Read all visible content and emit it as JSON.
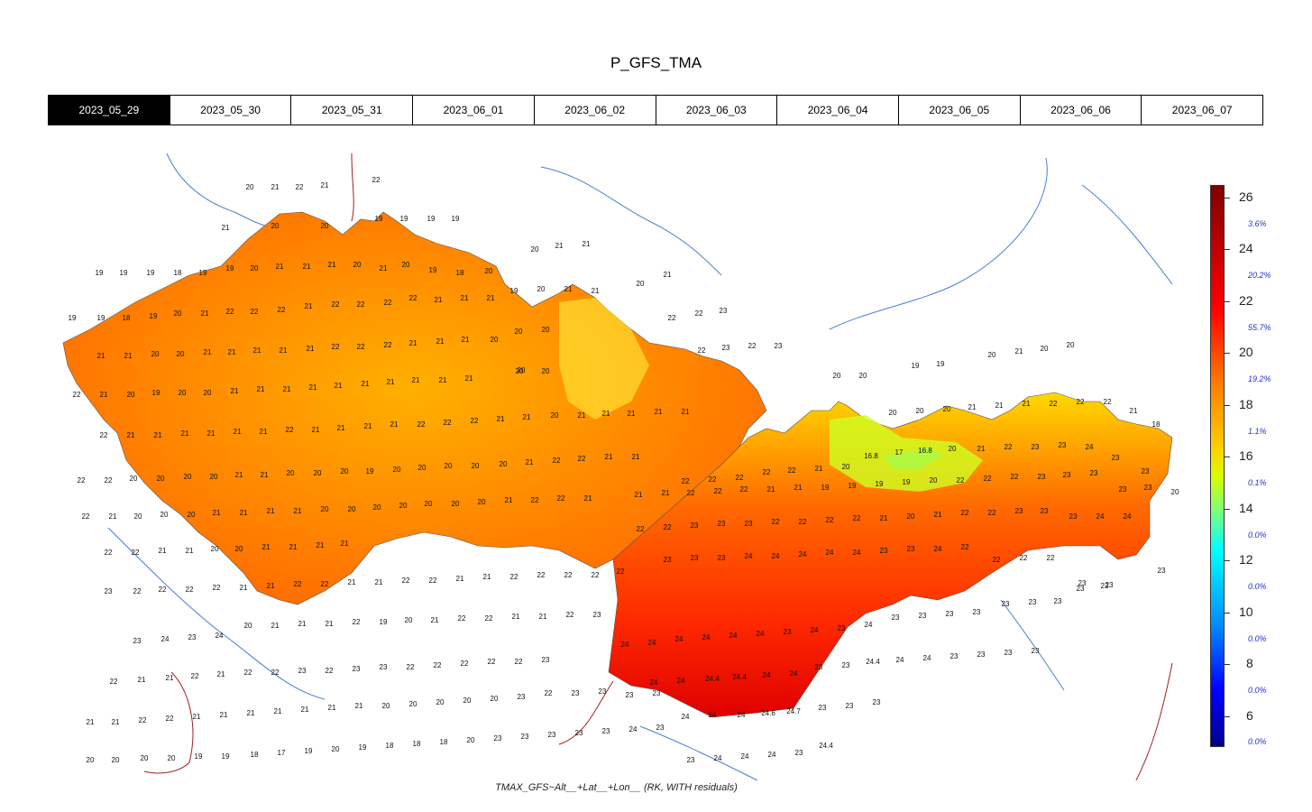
{
  "title": "P_GFS_TMA",
  "tabs": [
    "2023_05_29",
    "2023_05_30",
    "2023_05_31",
    "2023_06_01",
    "2023_06_02",
    "2023_06_03",
    "2023_06_04",
    "2023_06_05",
    "2023_06_06",
    "2023_06_07"
  ],
  "active_tab": 0,
  "legend": {
    "ticks": [
      "26",
      "24",
      "22",
      "20",
      "18",
      "16",
      "14",
      "12",
      "10",
      "8",
      "6"
    ],
    "percentages": [
      "3.6%",
      "20.2%",
      "55.7%",
      "19.2%",
      "1.1%",
      "0.1%",
      "0.0%",
      "0.0%",
      "0.0%",
      "0.0%",
      "0.0%"
    ]
  },
  "caption": "TMAX_GFS~Alt__+Lat__+Lon__ (RK, WITH residuals)",
  "colors": {
    "hot": "#ff2000",
    "warm": "#ff8a00",
    "mild": "#ffd800",
    "cool": "#9cff30",
    "cold": "#30e0c0"
  }
}
